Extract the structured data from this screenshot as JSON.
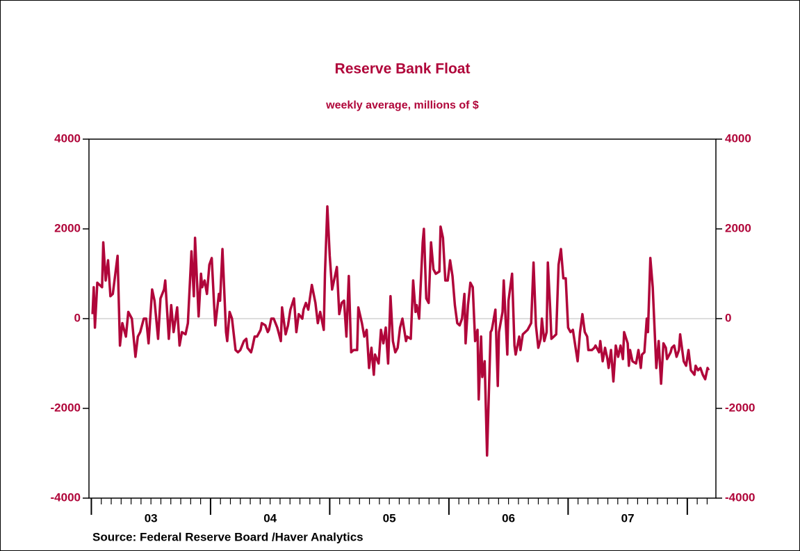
{
  "chart_data": {
    "type": "line",
    "title": "Reserve Bank Float",
    "subtitle": "weekly average, millions of $",
    "source": "Source:  Federal Reserve Board /Haver Analytics",
    "color": "#b0063a",
    "x": [
      2003.01,
      2003.02,
      2003.03,
      2003.05,
      2003.09,
      2003.1,
      2003.12,
      2003.14,
      2003.16,
      2003.18,
      2003.22,
      2003.24,
      2003.26,
      2003.29,
      2003.31,
      2003.34,
      2003.37,
      2003.39,
      2003.41,
      2003.44,
      2003.46,
      2003.48,
      2003.51,
      2003.53,
      2003.56,
      2003.58,
      2003.61,
      2003.62,
      2003.65,
      2003.67,
      2003.69,
      2003.72,
      2003.74,
      2003.76,
      2003.79,
      2003.81,
      2003.84,
      2003.86,
      2003.87,
      2003.9,
      2003.92,
      2003.93,
      2003.95,
      2003.97,
      2003.99,
      2004.01,
      2004.03,
      2004.04,
      2004.07,
      2004.08,
      2004.1,
      2004.13,
      2004.14,
      2004.16,
      2004.18,
      2004.21,
      2004.23,
      2004.25,
      2004.28,
      2004.3,
      2004.31,
      2004.34,
      2004.35,
      2004.37,
      2004.39,
      2004.42,
      2004.43,
      2004.46,
      2004.48,
      2004.49,
      2004.51,
      2004.53,
      2004.56,
      2004.57,
      2004.59,
      2004.6,
      2004.63,
      2004.65,
      2004.67,
      2004.7,
      2004.72,
      2004.74,
      2004.77,
      2004.78,
      2004.8,
      2004.82,
      2004.85,
      2004.88,
      2004.9,
      2004.92,
      2004.95,
      2004.96,
      2004.98,
      2005.0,
      2005.02,
      2005.04,
      2005.06,
      2005.08,
      2005.1,
      2005.12,
      2005.14,
      2005.16,
      2005.18,
      2005.2,
      2005.23,
      2005.24,
      2005.27,
      2005.29,
      2005.31,
      2005.33,
      2005.35,
      2005.37,
      2005.38,
      2005.41,
      2005.43,
      2005.45,
      2005.47,
      2005.49,
      2005.51,
      2005.53,
      2005.55,
      2005.57,
      2005.59,
      2005.61,
      2005.64,
      2005.65,
      2005.68,
      2005.7,
      2005.72,
      2005.73,
      2005.75,
      2005.78,
      2005.79,
      2005.81,
      2005.83,
      2005.85,
      2005.87,
      2005.89,
      2005.92,
      2005.93,
      2005.95,
      2005.97,
      2005.99,
      2006.01,
      2006.03,
      2006.05,
      2006.07,
      2006.09,
      2006.11,
      2006.13,
      2006.14,
      2006.16,
      2006.18,
      2006.2,
      2006.22,
      2006.24,
      2006.25,
      2006.27,
      2006.28,
      2006.3,
      2006.32,
      2006.35,
      2006.36,
      2006.39,
      2006.41,
      2006.42,
      2006.45,
      2006.46,
      2006.49,
      2006.5,
      2006.53,
      2006.55,
      2006.56,
      2006.59,
      2006.6,
      2006.62,
      2006.66,
      2006.69,
      2006.71,
      2006.73,
      2006.75,
      2006.77,
      2006.78,
      2006.8,
      2006.82,
      2006.83,
      2006.85,
      2006.86,
      2006.88,
      2006.9,
      2006.92,
      2006.94,
      2006.96,
      2006.98,
      2007.0,
      2007.02,
      2007.04,
      2007.06,
      2007.08,
      2007.1,
      2007.12,
      2007.14,
      2007.16,
      2007.17,
      2007.2,
      2007.22,
      2007.23,
      2007.26,
      2007.27,
      2007.29,
      2007.31,
      2007.33,
      2007.34,
      2007.36,
      2007.38,
      2007.4,
      2007.42,
      2007.44,
      2007.46,
      2007.47,
      2007.5,
      2007.51,
      2007.52,
      2007.54,
      2007.57,
      2007.59,
      2007.61,
      2007.62,
      2007.64,
      2007.66,
      2007.67,
      2007.69,
      2007.71,
      2007.72,
      2007.74,
      2007.76,
      2007.78,
      2007.8,
      2007.82,
      2007.83,
      2007.86,
      2007.87,
      2007.89,
      2007.91,
      2007.93,
      2007.94,
      2007.97,
      2007.99,
      2008.01,
      2008.03,
      2008.06,
      2008.07,
      2008.09,
      2008.11,
      2008.13,
      2008.15,
      2008.17,
      2008.18
    ],
    "values": [
      100,
      700,
      -200,
      800,
      700,
      1700,
      850,
      1300,
      500,
      550,
      1400,
      -600,
      -100,
      -400,
      150,
      0,
      -850,
      -400,
      -300,
      0,
      0,
      -550,
      650,
      400,
      -450,
      450,
      650,
      850,
      -450,
      300,
      -300,
      250,
      -600,
      -300,
      -350,
      -100,
      1500,
      500,
      1800,
      50,
      1000,
      700,
      850,
      550,
      1200,
      1350,
      300,
      -150,
      550,
      400,
      1550,
      -300,
      -500,
      150,
      0,
      -700,
      -750,
      -700,
      -500,
      -450,
      -650,
      -750,
      -650,
      -400,
      -400,
      -250,
      -100,
      -150,
      -300,
      -250,
      0,
      0,
      -200,
      -300,
      -500,
      250,
      -350,
      -150,
      200,
      450,
      -300,
      100,
      0,
      200,
      350,
      200,
      750,
      350,
      -100,
      150,
      -250,
      1000,
      2500,
      1400,
      650,
      900,
      1150,
      100,
      350,
      400,
      -400,
      950,
      -750,
      -700,
      -700,
      250,
      -100,
      -400,
      -250,
      -1100,
      -650,
      -1250,
      -800,
      -1000,
      -250,
      -550,
      -200,
      -1000,
      500,
      -500,
      -750,
      -650,
      -200,
      0,
      -500,
      -400,
      -450,
      850,
      150,
      300,
      0,
      1700,
      2000,
      450,
      350,
      1700,
      1100,
      1000,
      1050,
      2050,
      1800,
      850,
      850,
      1300,
      950,
      300,
      -100,
      -150,
      0,
      550,
      -550,
      300,
      800,
      700,
      -500,
      -250,
      -1800,
      -400,
      -1300,
      -950,
      -3050,
      -300,
      -250,
      200,
      -1500,
      -300,
      150,
      850,
      -800,
      400,
      1000,
      -600,
      -800,
      -400,
      -700,
      -350,
      -250,
      -100,
      1250,
      -150,
      -650,
      -450,
      0,
      -500,
      -300,
      1250,
      200,
      -450,
      -400,
      -350,
      1200,
      1550,
      900,
      900,
      -200,
      -300,
      -250,
      -600,
      -950,
      -300,
      100,
      -300,
      -400,
      -700,
      -700,
      -650,
      -600,
      -750,
      -500,
      -950,
      -650,
      -900,
      -1100,
      -700,
      -1400,
      -600,
      -850,
      -600,
      -900,
      -300,
      -550,
      -1050,
      -700,
      -950,
      -1000,
      -700,
      -1100,
      -800,
      -750,
      0,
      -300,
      1350,
      700,
      100,
      -1100,
      -500,
      -1450,
      -550,
      -650,
      -900,
      -750,
      -650,
      -600,
      -850,
      -700,
      -350,
      -950,
      -1050,
      -700,
      -1150,
      -1250,
      -1050,
      -1150,
      -1100,
      -1250,
      -1350,
      -1100,
      -1150
    ],
    "xlim": [
      2002.98,
      2008.24
    ],
    "xticks": [
      {
        "value": 2003.5,
        "label": "03"
      },
      {
        "value": 2004.5,
        "label": "04"
      },
      {
        "value": 2005.5,
        "label": "05"
      },
      {
        "value": 2006.5,
        "label": "06"
      },
      {
        "value": 2007.5,
        "label": "07"
      }
    ],
    "ylim": [
      -4000,
      4000
    ],
    "yticks": [
      -4000,
      -2000,
      0,
      2000,
      4000
    ],
    "zero_line": true
  }
}
